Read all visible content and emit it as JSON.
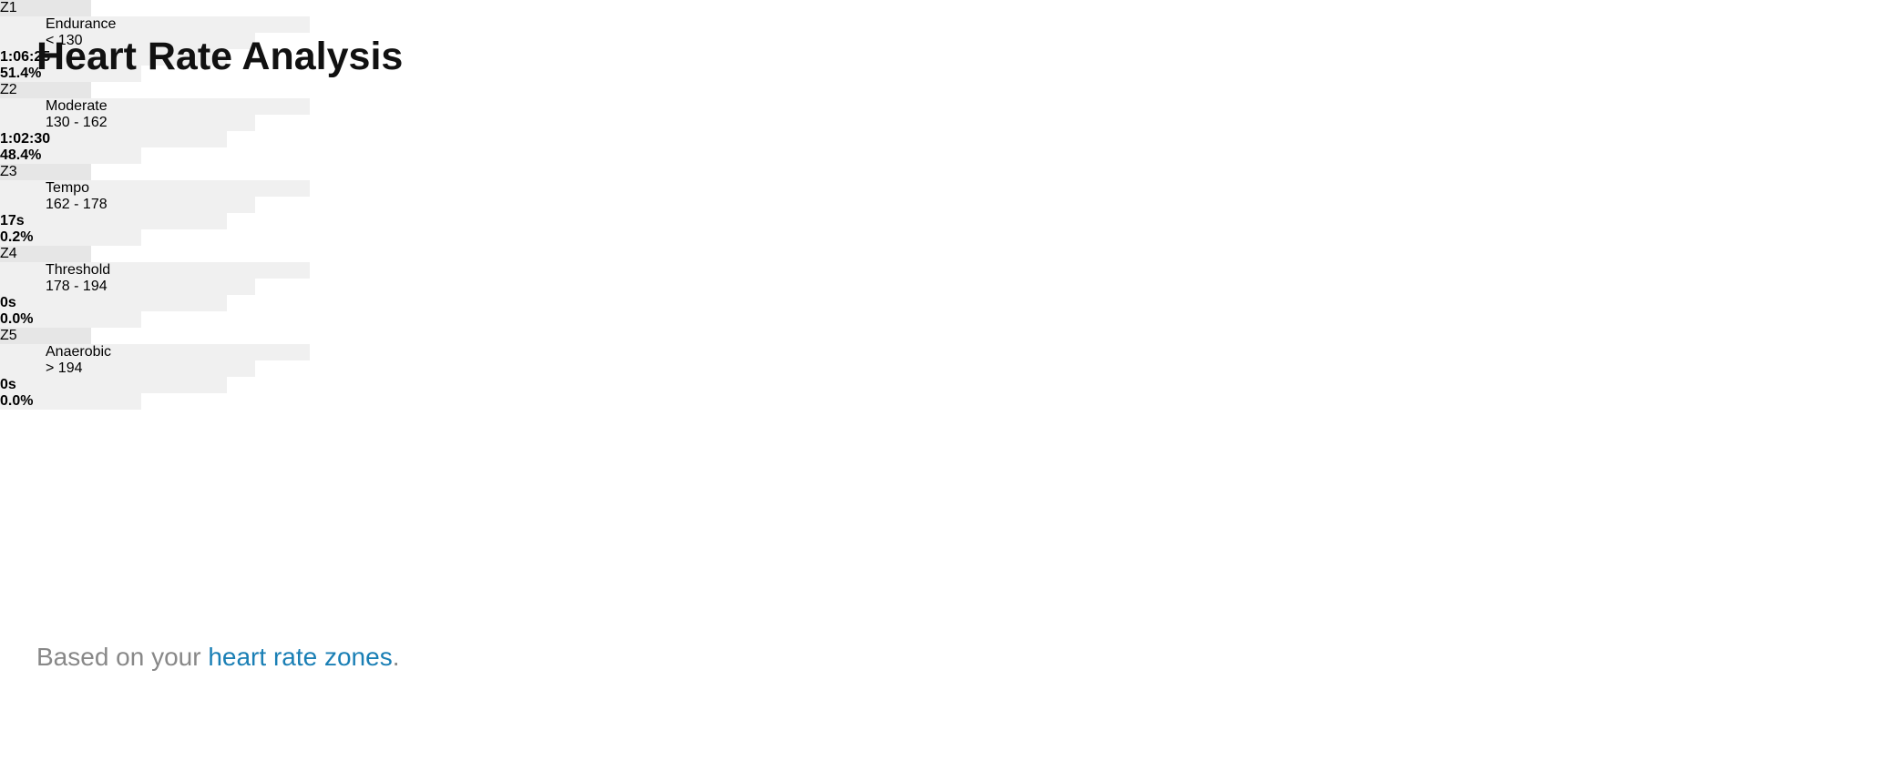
{
  "header": {
    "title": "Heart Rate Analysis"
  },
  "table": {
    "rows": [
      {
        "zone": "Z1",
        "name": "Endurance",
        "range": "< 130",
        "time": "1:06:25",
        "percent": 51.4,
        "percent_label": "51.4%",
        "color": "#e8dadb"
      },
      {
        "zone": "Z2",
        "name": "Moderate",
        "range": "130 - 162",
        "time": "1:02:30",
        "percent": 48.4,
        "percent_label": "48.4%",
        "color": "#e6c0c1"
      },
      {
        "zone": "Z3",
        "name": "Tempo",
        "range": "162 - 178",
        "time": "17s",
        "percent": 0.2,
        "percent_label": "0.2%",
        "color": "#e0c8c9"
      },
      {
        "zone": "Z4",
        "name": "Threshold",
        "range": "178 - 194",
        "time": "0s",
        "percent": 0.0,
        "percent_label": "0.0%",
        "color": "#e0c8c9"
      },
      {
        "zone": "Z5",
        "name": "Anaerobic",
        "range": "> 194",
        "time": "0s",
        "percent": 0.0,
        "percent_label": "0.0%",
        "color": "#e0c8c9"
      }
    ]
  },
  "footer": {
    "text": "Based on your ",
    "link": "heart rate zones",
    "end": "."
  }
}
